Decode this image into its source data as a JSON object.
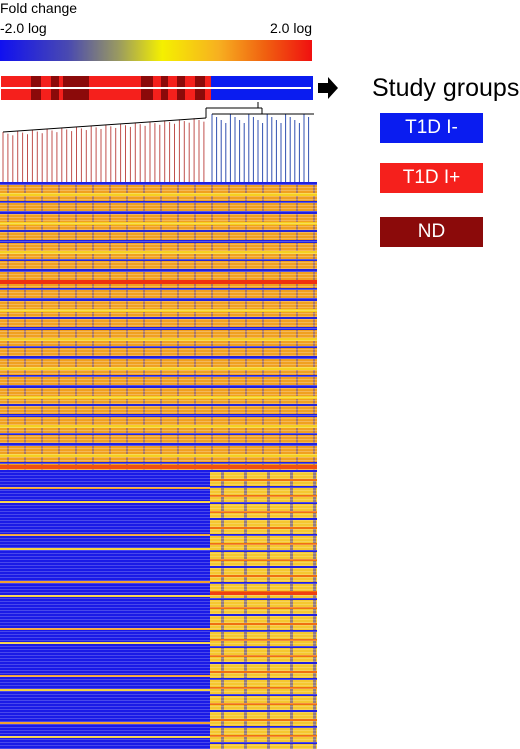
{
  "legend": {
    "title": "Fold change",
    "min_label": "-2.0 log",
    "max_label": "2.0 log"
  },
  "groups": {
    "title": "Study groups",
    "items": [
      {
        "label": "T1D I-",
        "color": "#0a1cf0"
      },
      {
        "label": "T1D I+",
        "color": "#f5201c"
      },
      {
        "label": "ND",
        "color": "#8b0a0a"
      }
    ]
  }
}
